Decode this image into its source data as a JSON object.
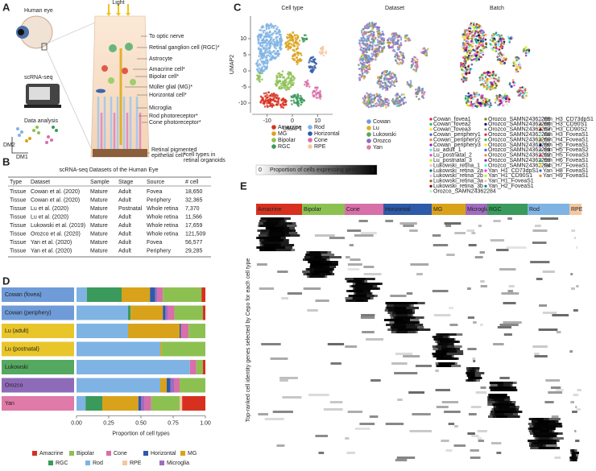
{
  "panel_labels": [
    "A",
    "B",
    "C",
    "D",
    "E"
  ],
  "panel_a": {
    "human_eye": "Human eye",
    "light": "Light",
    "scrnaseq": "scRNA-seq",
    "data_analysis": "Data analysis",
    "dm2": "DM2",
    "dm1": "DM1",
    "cells": [
      "To optic nerve",
      "Retinal ganglion cell (RGC)*",
      "Astrocyte",
      "Amacrine cell*",
      "Bipolar cell*",
      "Müller glial (MG)*",
      "Horizontal cell*",
      "Microglia",
      "Rod photoreceptor*",
      "Cone photoreceptor*"
    ],
    "rpe_lines": [
      "Retinal pigmented",
      "epithelial cell*"
    ],
    "note_lines": [
      "*cell types in",
      "retinal organoids"
    ]
  },
  "panel_b": {
    "title": "scRNA-seq Datasets of the Human Eye",
    "columns": [
      "Type",
      "Dataset",
      "Sample",
      "Stage",
      "Source",
      "# cell"
    ],
    "rows": [
      [
        "Tissue",
        "Cowan et al. (2020)",
        "Mature",
        "Adult",
        "Fovea",
        "18,650"
      ],
      [
        "Tissue",
        "Cowan et al. (2020)",
        "Mature",
        "Adult",
        "Periphery",
        "32,365"
      ],
      [
        "Tissue",
        "Lu et al. (2020)",
        "Mature",
        "Postnatal",
        "Whole retina",
        "7,370"
      ],
      [
        "Tissue",
        "Lu et al. (2020)",
        "Mature",
        "Adult",
        "Whole retina",
        "11,566"
      ],
      [
        "Tissue",
        "Lukowski et al. (2019)",
        "Mature",
        "Adult",
        "Whole retina",
        "17,659"
      ],
      [
        "Tissue",
        "Orozco et al. (2020)",
        "Mature",
        "Adult",
        "Whole retina",
        "121,509"
      ],
      [
        "Tissue",
        "Yan et al. (2020)",
        "Mature",
        "Adult",
        "Fovea",
        "56,577"
      ],
      [
        "Tissue",
        "Yan et al. (2020)",
        "Mature",
        "Adult",
        "Periphery",
        "29,285"
      ]
    ]
  },
  "panel_c": {
    "titles": [
      "Cell type",
      "Dataset",
      "Batch"
    ],
    "xlabel": "UMAP1",
    "ylabel": "UMAP2",
    "xlim": [
      -16,
      16
    ],
    "ylim": [
      -13,
      17
    ],
    "xticks": [
      -10,
      0,
      10
    ],
    "yticks": [
      -10,
      -5,
      0,
      5,
      10
    ],
    "cell_type_legend": [
      {
        "name": "Amacrine",
        "color": "#d7301f"
      },
      {
        "name": "MG",
        "color": "#d9a21b"
      },
      {
        "name": "Bipolar",
        "color": "#8cc152"
      },
      {
        "name": "RGC",
        "color": "#3a9a5b"
      },
      {
        "name": "Rod",
        "color": "#7fb3e3"
      },
      {
        "name": "Horizontal",
        "color": "#2e5aa8"
      },
      {
        "name": "Cone",
        "color": "#d86fa8"
      },
      {
        "name": "RPE",
        "color": "#f4c7a1"
      }
    ],
    "dataset_legend": [
      {
        "name": "Cowan",
        "color": "#6f9bd8"
      },
      {
        "name": "Lu",
        "color": "#e0b020"
      },
      {
        "name": "Lukowski",
        "color": "#55a860"
      },
      {
        "name": "Orozco",
        "color": "#8e6bb8"
      },
      {
        "name": "Yan",
        "color": "#e07aa8"
      }
    ],
    "batch_palette": [
      "#e6194b",
      "#3cb44b",
      "#ffe119",
      "#4363d8",
      "#f58231",
      "#911eb4",
      "#46f0f0",
      "#f032e6",
      "#bcf60c",
      "#fabebe",
      "#008080",
      "#e6beff",
      "#9a6324",
      "#800000",
      "#aaffc3",
      "#808000",
      "#000075",
      "#808080"
    ],
    "batch_legend": [
      [
        "Cowan_fovea1",
        "Cowan_fovea2",
        "Cowan_fovea3",
        "Cowan_periphery1",
        "Cowan_periphery2",
        "Cowan_periphery3",
        "Lu_adult_1",
        "Lu_postnatal_2",
        "Lu_postnatal_3",
        "Lukowski_retina_1",
        "Lukowski_retina_2a",
        "Lukowski_retina_2b",
        "Lukowski_retina_3a",
        "Lukowski_retina_3b",
        "Orozco_SAMN24362284"
      ],
      [
        "Orozco_SAMN24362285",
        "Orozco_SAMN24362286",
        "Orozco_SAMN24362287",
        "Orozco_SAMN24362288",
        "Orozco_SAMN24362289",
        "Orozco_SAMN24362290",
        "Orozco_SAMN24362291",
        "Orozco_SAMN24362292",
        "Orozco_SAMN24362293",
        "Orozco_SAMN24362294",
        "Yan_H1_CD73dpS1",
        "Yan_H1_CD90S1",
        "Yan_H1_FoveaS1",
        "Yan_H2_FoveaS1"
      ],
      [
        "Yan_H3_CD73dpS1",
        "Yan_H3_CD90S1",
        "Yan_H3_CD90S2",
        "Yan_H3_FoveaS1",
        "Yan_H4_FoveaS1",
        "Yan_H5_FoveaS1",
        "Yan_H5_FoveaS2",
        "Yan_H5_FoveaS3",
        "Yan_H6_FoveaS1",
        "Yan_H7_FoveaS1",
        "Yan_H8_FoveaS1",
        "Yan_H9_FoveaS1"
      ]
    ]
  },
  "panel_d": {
    "type": "bar",
    "orientation": "horizontal",
    "stacked": true,
    "categories": [
      "Cowan (fovea)",
      "Cowan (periphery)",
      "Lu (adult)",
      "Lu (postnatal)",
      "Lukowski",
      "Orozco",
      "Yan"
    ],
    "category_colors": [
      "#6f9bd8",
      "#6f9bd8",
      "#e8c62a",
      "#e8c62a",
      "#55a860",
      "#8e6bb8",
      "#e07aa8"
    ],
    "series": [
      {
        "name": "Amacrine",
        "color": "#d7301f",
        "values": [
          0.03,
          0.02,
          0,
          0,
          0.02,
          0,
          0.18
        ]
      },
      {
        "name": "Bipolar",
        "color": "#8cc152",
        "values": [
          0.3,
          0.22,
          0.13,
          0.34,
          0.05,
          0.2,
          0.22
        ]
      },
      {
        "name": "Cone",
        "color": "#d86fa8",
        "values": [
          0.04,
          0.05,
          0.06,
          0,
          0.05,
          0.04,
          0.05
        ]
      },
      {
        "name": "Horizontal",
        "color": "#2e5aa8",
        "values": [
          0.04,
          0.02,
          0.01,
          0,
          0,
          0.03,
          0.02
        ]
      },
      {
        "name": "MG",
        "color": "#d9a21b",
        "values": [
          0.22,
          0.25,
          0.4,
          0.01,
          0,
          0.05,
          0.28
        ]
      },
      {
        "name": "RGC",
        "color": "#3a9a5b",
        "values": [
          0.27,
          0.02,
          0,
          0,
          0,
          0,
          0.13
        ]
      },
      {
        "name": "Rod",
        "color": "#7fb3e3",
        "values": [
          0.08,
          0.4,
          0.4,
          0.65,
          0.88,
          0.65,
          0.07
        ]
      },
      {
        "name": "RPE",
        "color": "#f4c7a1",
        "values": [
          0,
          0,
          0,
          0,
          0,
          0,
          0.02
        ]
      },
      {
        "name": "Microglia",
        "color": "#a16cc0",
        "values": [
          0.02,
          0.02,
          0,
          0,
          0,
          0.03,
          0.03
        ]
      }
    ],
    "stack_order": [
      6,
      5,
      4,
      3,
      8,
      2,
      1,
      7,
      0
    ],
    "xlim": [
      0,
      1
    ],
    "xticks": [
      {
        "value": 0,
        "label": "0.00"
      },
      {
        "value": 0.25,
        "label": "0.25"
      },
      {
        "value": 0.5,
        "label": "0.50"
      },
      {
        "value": 0.75,
        "label": "0.75"
      },
      {
        "value": 1,
        "label": "1.00"
      }
    ],
    "xlabel": "Proportion of cell types"
  },
  "panel_e": {
    "colorbar_label": "Proportion of cells expressing gene",
    "colorbar_ticks": [
      0,
      1
    ],
    "ylabel": "Top-ranked cell identity genes selected by Cepo for each cell type",
    "columns": [
      {
        "name": "Amacrine",
        "color": "#d7301f"
      },
      {
        "name": "Bipolar",
        "color": "#8cc152"
      },
      {
        "name": "Cone",
        "color": "#d86fa8"
      },
      {
        "name": "Horizontal",
        "color": "#2e5aa8"
      },
      {
        "name": "MG",
        "color": "#d9a21b"
      },
      {
        "name": "Microglia",
        "color": "#a16cc0"
      },
      {
        "name": "RGC",
        "color": "#3a9a5b"
      },
      {
        "name": "Rod",
        "color": "#7fb3e3"
      },
      {
        "name": "RPE",
        "color": "#f4c7a1"
      }
    ]
  }
}
